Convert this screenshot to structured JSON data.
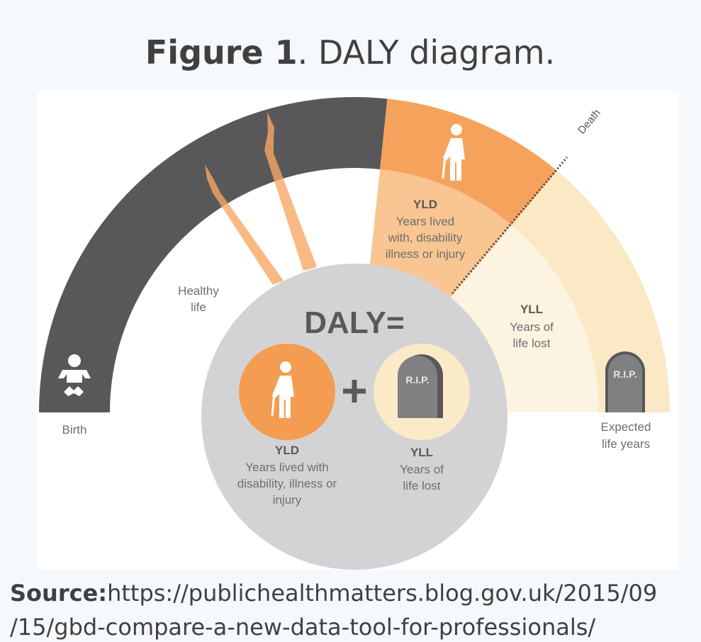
{
  "title": {
    "bold": "Figure 1",
    "rest": ". DALY diagram."
  },
  "diagram": {
    "death": "Death",
    "healthy_life": [
      "Healthy",
      "life"
    ],
    "birth": "Birth",
    "yld_arc": {
      "abbr": "YLD",
      "lines": [
        "Years lived",
        "with, disability",
        "illness or injury"
      ]
    },
    "yll_arc": {
      "abbr": "YLL",
      "lines": [
        "Years of",
        "life lost"
      ]
    },
    "expected": [
      "Expected",
      "life years"
    ],
    "outer_tombstone": "R.I.P.",
    "formula": "DALY=",
    "inner_tombstone": "R.I.P.",
    "yld": {
      "abbr": "YLD",
      "lines": [
        "Years lived with",
        "disability, illness or",
        "injury"
      ]
    },
    "yll": {
      "abbr": "YLL",
      "lines": [
        "Years of",
        "life lost"
      ]
    }
  },
  "source": {
    "label": "Source:",
    "lines": [
      "https://publichealthmatters.blog.gov.uk/2015/09",
      "/15/gbd-compare-a-new-data-tool-for-professionals/"
    ]
  }
}
